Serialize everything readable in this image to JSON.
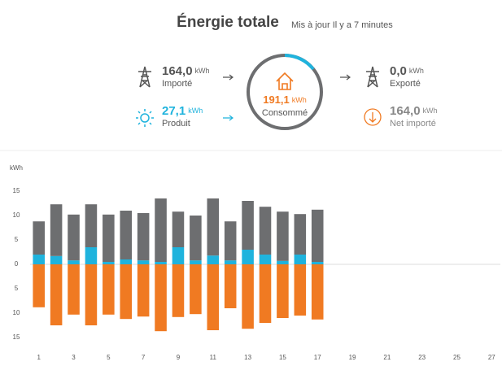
{
  "header": {
    "title": "Énergie totale",
    "subtitle": "Mis à jour Il y a 7 minutes"
  },
  "unit": "kWh",
  "summary": {
    "imported": {
      "value": "164,0",
      "label": "Importé"
    },
    "produced": {
      "value": "27,1",
      "label": "Produit"
    },
    "consumed": {
      "value": "191,1",
      "label": "Consommé"
    },
    "exported": {
      "value": "0,0",
      "label": "Exporté"
    },
    "net": {
      "value": "164,0",
      "label": "Net importé"
    }
  },
  "chart_data": {
    "type": "bar",
    "stacked": true,
    "ylabel": "kWh",
    "categories": [
      "1",
      null,
      "3",
      null,
      "5",
      null,
      "7",
      null,
      "9",
      null,
      "11",
      null,
      "13",
      null,
      "15",
      null,
      "17",
      null,
      "19",
      null,
      "21",
      null,
      "23",
      null,
      "25",
      null,
      "27"
    ],
    "series": [
      {
        "color": "#1fb3dd",
        "values": [
          2.0,
          1.7,
          0.8,
          3.5,
          0.5,
          1.0,
          0.8,
          0.5,
          3.5,
          0.8,
          1.8,
          0.8,
          3.0,
          2.0,
          0.7,
          2.0,
          0.5,
          null,
          null,
          null,
          null,
          null,
          null,
          null,
          null,
          null,
          null
        ]
      },
      {
        "color": "#6d6e70",
        "values": [
          6.8,
          10.6,
          9.4,
          8.8,
          9.7,
          10.0,
          9.7,
          13.0,
          7.3,
          9.2,
          11.7,
          8.0,
          10.0,
          9.8,
          10.1,
          8.3,
          10.7,
          null,
          null,
          null,
          null,
          null,
          null,
          null,
          null,
          null,
          null
        ]
      },
      {
        "color": "#f07a22",
        "values": [
          -8.8,
          -12.5,
          -10.3,
          -12.5,
          -10.3,
          -11.2,
          -10.7,
          -13.7,
          -10.8,
          -10.2,
          -13.5,
          -9.0,
          -13.2,
          -12.0,
          -11.0,
          -10.5,
          -11.3,
          null,
          null,
          null,
          null,
          null,
          null,
          null,
          null,
          null,
          null
        ]
      }
    ],
    "ylim": [
      -17,
      17
    ],
    "yticks": [
      {
        "value": -15,
        "label": "15"
      },
      {
        "value": -10,
        "label": "10"
      },
      {
        "value": -5,
        "label": "5"
      },
      0,
      5,
      10,
      15
    ],
    "grid": false
  }
}
